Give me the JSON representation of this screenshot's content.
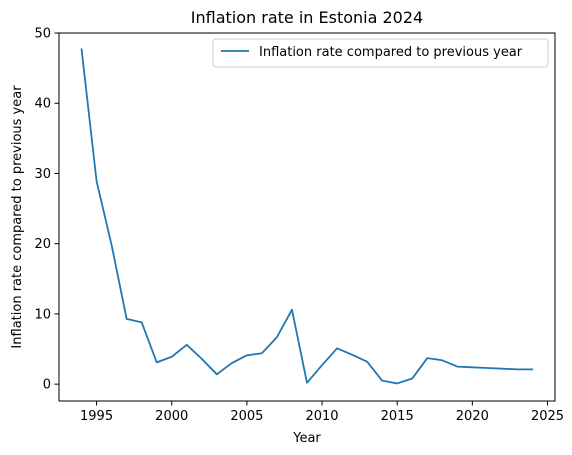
{
  "chart_data": {
    "type": "line",
    "title": "Inflation rate in Estonia 2024",
    "xlabel": "Year",
    "ylabel": "Inflation rate compared to previous year",
    "xlim": [
      1992.5,
      2025.5
    ],
    "ylim": [
      -2.4,
      50
    ],
    "xticks": [
      1995,
      2000,
      2005,
      2010,
      2015,
      2020,
      2025
    ],
    "yticks": [
      0,
      10,
      20,
      30,
      40,
      50
    ],
    "grid": false,
    "legend_position": "upper right",
    "series": [
      {
        "name": "Inflation rate compared to previous year",
        "color": "#1f77b4",
        "x": [
          1994,
          1995,
          1996,
          1997,
          1998,
          1999,
          2000,
          2001,
          2002,
          2003,
          2004,
          2005,
          2006,
          2007,
          2008,
          2009,
          2010,
          2011,
          2012,
          2013,
          2014,
          2015,
          2016,
          2017,
          2018,
          2019,
          2020,
          2021,
          2022,
          2023,
          2024
        ],
        "y": [
          47.7,
          28.9,
          19.8,
          9.3,
          8.8,
          3.1,
          3.9,
          5.6,
          3.6,
          1.4,
          3.0,
          4.1,
          4.4,
          6.7,
          10.6,
          0.2,
          2.7,
          5.1,
          4.2,
          3.2,
          0.5,
          0.1,
          0.8,
          3.7,
          3.4,
          2.5,
          2.4,
          2.3,
          2.2,
          2.1,
          2.1
        ]
      }
    ]
  }
}
